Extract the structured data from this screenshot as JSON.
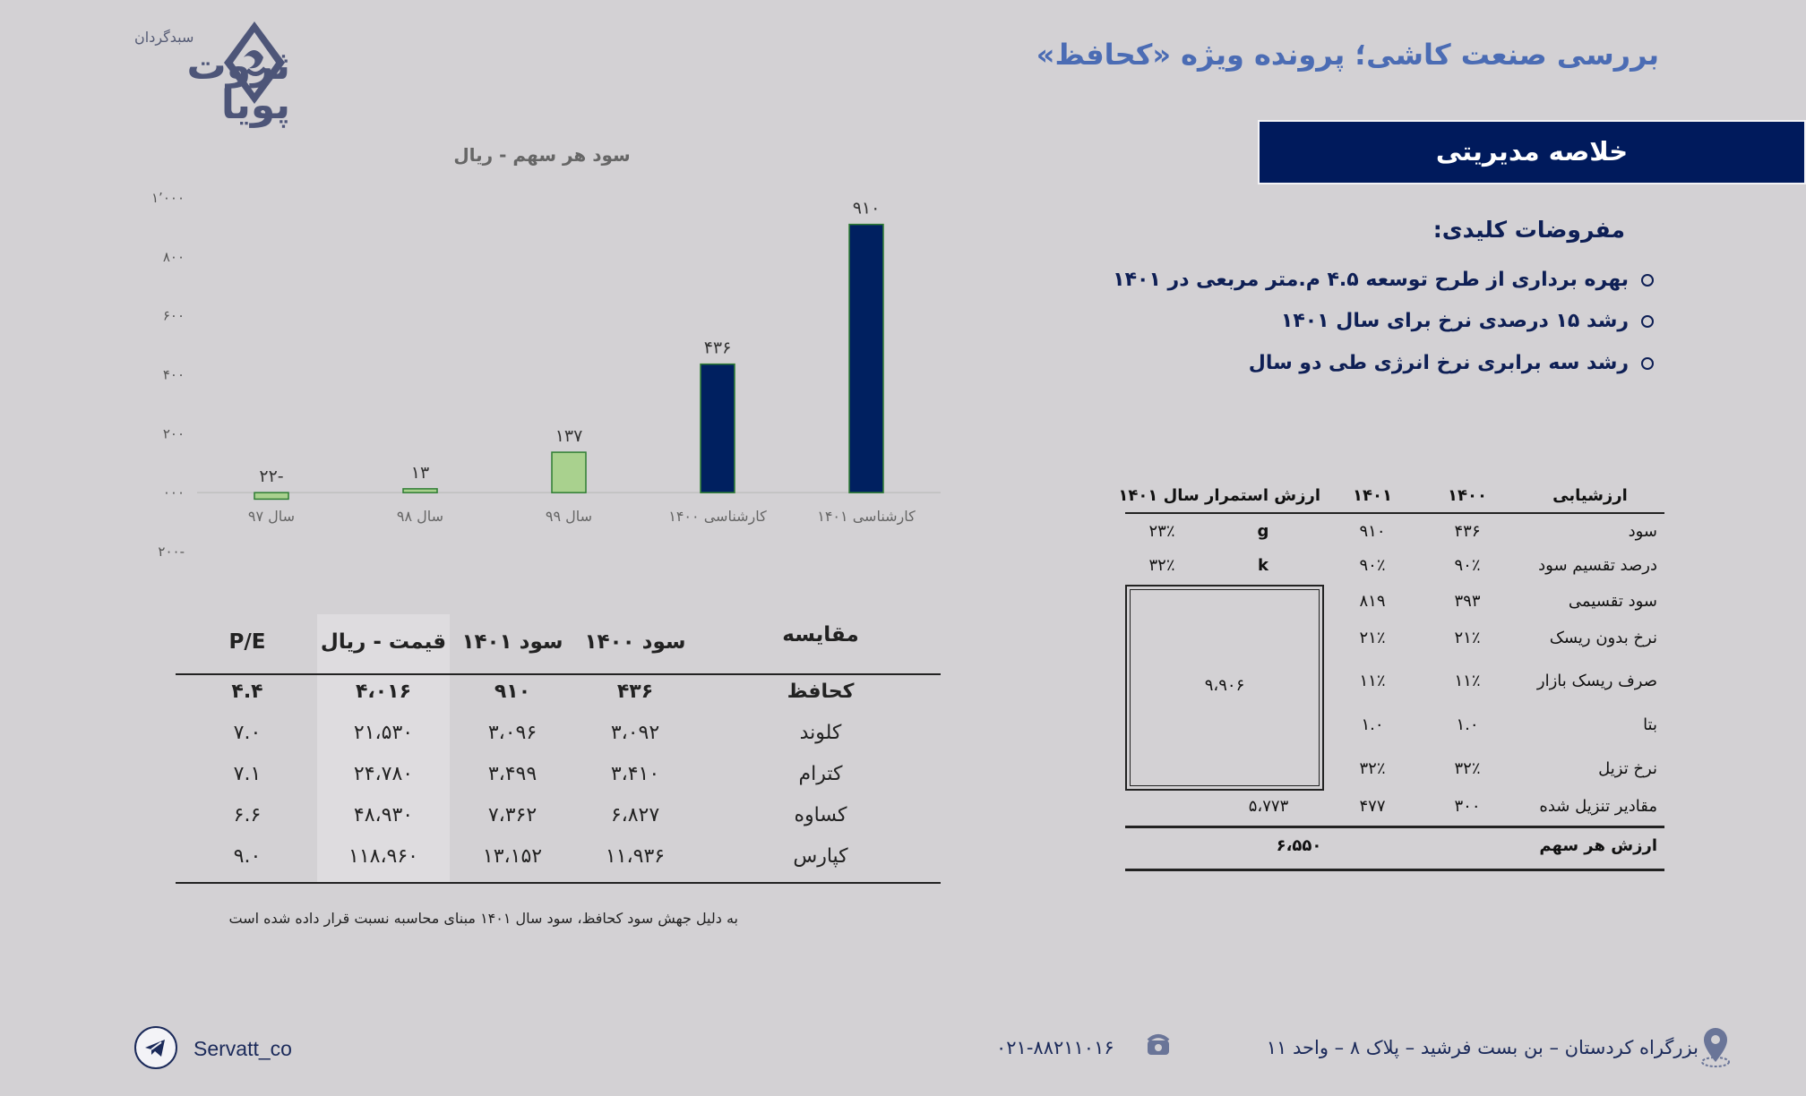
{
  "header": {
    "title": "بررسی صنعت کاشی؛ پرونده ویژه «کحافظ»",
    "logo_top": "سبدگردان",
    "logo_main": "ثروت پویا"
  },
  "summary": {
    "banner": "خلاصه مدیریتی",
    "assumptions_title": "مفروضات کلیدی:",
    "assumptions": [
      "بهره برداری از طرح توسعه ۴.۵ م.متر مربعی در ۱۴۰۱",
      "رشد ۱۵ درصدی نرخ برای سال ۱۴۰۱",
      "رشد  سه برابری نرخ انرژی  طی دو سال"
    ]
  },
  "chart_data": {
    "type": "bar",
    "title": "سود هر سهم - ریال",
    "categories": [
      "سال ۹۷",
      "سال ۹۸",
      "سال ۹۹",
      "کارشناسی ۱۴۰۰",
      "کارشناسی ۱۴۰۱"
    ],
    "values": [
      -22,
      13,
      137,
      436,
      910
    ],
    "value_labels": [
      "۲۲-",
      "۱۳",
      "۱۳۷",
      "۴۳۶",
      "۹۱۰"
    ],
    "bar_colors": [
      "#a9d18e",
      "#a9d18e",
      "#a9d18e",
      "#002060",
      "#002060"
    ],
    "ylim": [
      -200,
      1000
    ],
    "yticks": [
      -200,
      0,
      200,
      400,
      600,
      800,
      1000
    ],
    "ytick_labels": [
      "۲۰۰-",
      "۰۰۰",
      "۲۰۰",
      "۴۰۰",
      "۶۰۰",
      "۸۰۰",
      "۱٬۰۰۰"
    ],
    "grid": false,
    "legend": "none"
  },
  "comparison": {
    "headers": [
      "مقایسه",
      "سود ۱۴۰۰",
      "سود ۱۴۰۱",
      "قیمت - ریال",
      "P/E"
    ],
    "rows": [
      [
        "کحافظ",
        "۴۳۶",
        "۹۱۰",
        "۴،۰۱۶",
        "۴.۴"
      ],
      [
        "کلوند",
        "۳،۰۹۲",
        "۳،۰۹۶",
        "۲۱،۵۳۰",
        "۷.۰"
      ],
      [
        "کترام",
        "۳،۴۱۰",
        "۳،۴۹۹",
        "۲۴،۷۸۰",
        "۷.۱"
      ],
      [
        "کساوه",
        "۶،۸۲۷",
        "۷،۳۶۲",
        "۴۸،۹۳۰",
        "۶.۶"
      ],
      [
        "کپارس",
        "۱۱،۹۳۶",
        "۱۳،۱۵۲",
        "۱۱۸،۹۶۰",
        "۹.۰"
      ]
    ],
    "footnote": "به دلیل جهش سود کحافظ، سود سال ۱۴۰۱ مبنای محاسبه نسبت قرار داده شده است"
  },
  "valuation": {
    "headers": [
      "ارزشیابی",
      "۱۴۰۰",
      "۱۴۰۱",
      "ارزش استمرار سال ۱۴۰۱"
    ],
    "rows": [
      [
        "سود",
        "۴۳۶",
        "۹۱۰"
      ],
      [
        "درصد تقسیم سود",
        "۹۰٪",
        "۹۰٪"
      ],
      [
        "سود تقسیمی",
        "۳۹۳",
        "۸۱۹"
      ],
      [
        "نرخ بدون ریسک",
        "۲۱٪",
        "۲۱٪"
      ],
      [
        "صرف ریسک بازار",
        "۱۱٪",
        "۱۱٪"
      ],
      [
        "بتا",
        "۱.۰",
        "۱.۰"
      ],
      [
        "نرخ تزیل",
        "۳۲٪",
        "۳۲٪"
      ],
      [
        "مقادیر تنزیل شده",
        "۳۰۰",
        "۴۷۷"
      ]
    ],
    "g_label": "g",
    "g_value": "۲۳٪",
    "k_label": "k",
    "k_value": "۳۲٪",
    "terminal_value": "۹،۹۰۶",
    "terminal_discounted": "۵،۷۷۳",
    "per_share_label": "ارزش هر سهم",
    "per_share_value": "۶،۵۵۰"
  },
  "footer": {
    "telegram": "Servatt_co",
    "phone": "۰۲۱-۸۸۲۱۱۰۱۶",
    "address": "بزرگراه کردستان – بن بست فرشید – پلاک ۸ – واحد ۱۱"
  }
}
